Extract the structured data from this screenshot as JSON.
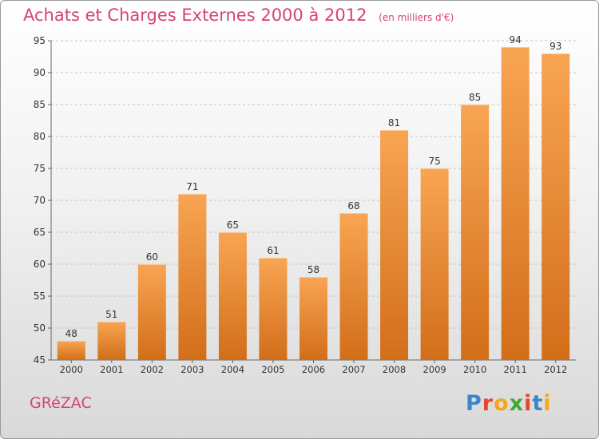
{
  "chart_data": {
    "type": "bar",
    "title": "Achats et Charges Externes 2000 à 2012",
    "subtitle": "(en milliers d'€)",
    "categories": [
      "2000",
      "2001",
      "2002",
      "2003",
      "2004",
      "2005",
      "2006",
      "2007",
      "2008",
      "2009",
      "2010",
      "2011",
      "2012"
    ],
    "values": [
      48,
      51,
      60,
      71,
      65,
      61,
      58,
      68,
      81,
      75,
      85,
      94,
      93
    ],
    "ylim": [
      45,
      95
    ],
    "yticks": [
      45,
      50,
      55,
      60,
      65,
      70,
      75,
      80,
      85,
      90,
      95
    ],
    "grid": "horizontal dashed",
    "bar_color_top": "#f8a553",
    "bar_color_bottom": "#d26e1a"
  },
  "place_name": "GRéZAC",
  "brand": {
    "letters": [
      "P",
      "r",
      "o",
      "x",
      "i",
      "t",
      "i"
    ],
    "colors": [
      "#3a86c8",
      "#e8452c",
      "#f2a81d",
      "#3aaa35",
      "#e8452c",
      "#3a86c8",
      "#f2a81d"
    ]
  }
}
